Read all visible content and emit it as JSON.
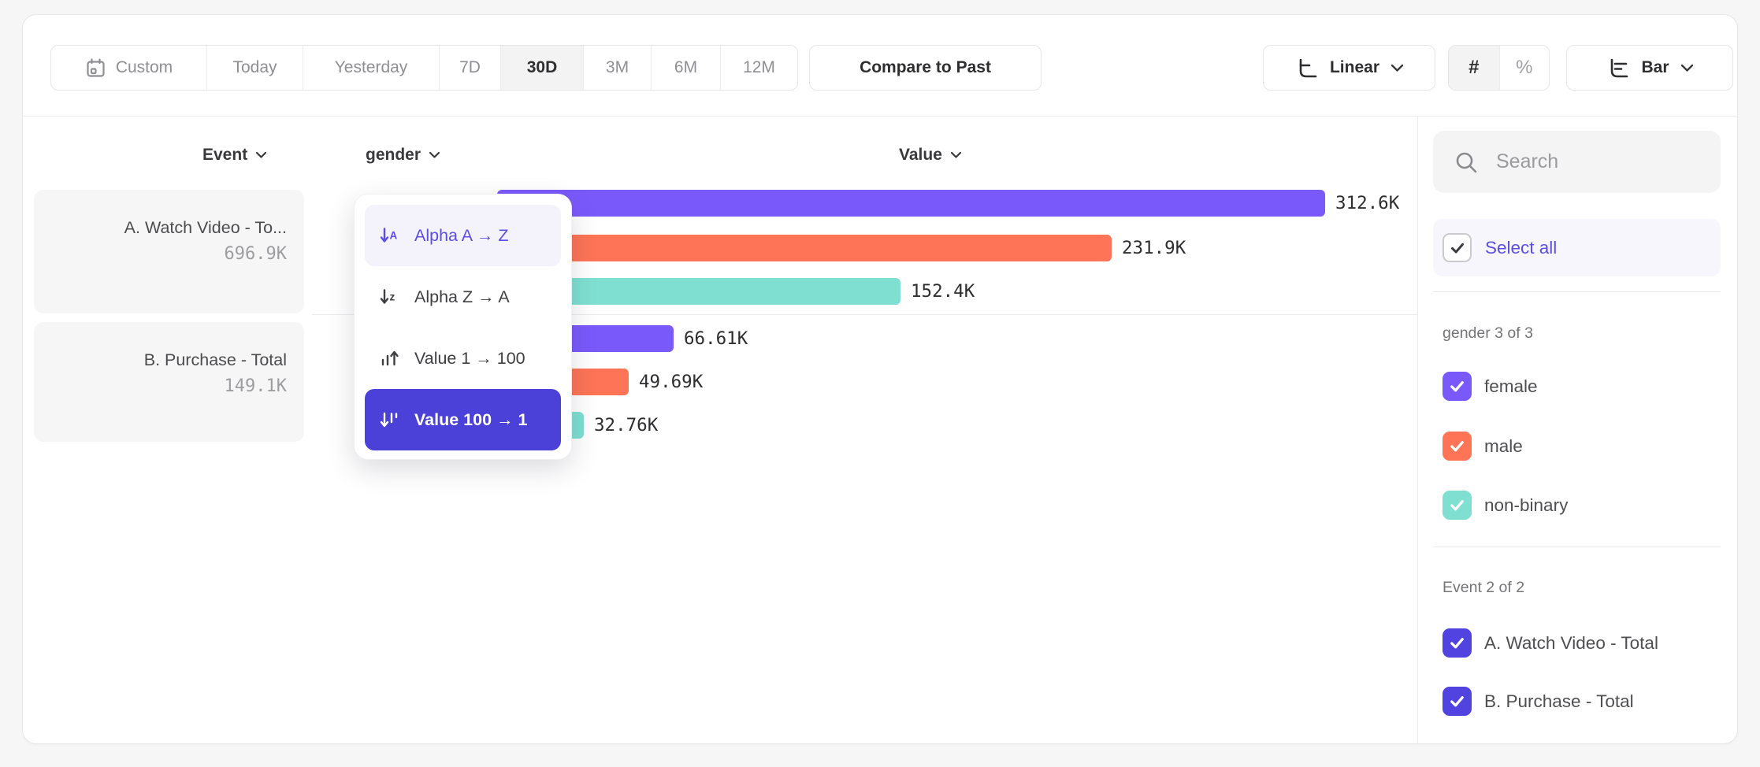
{
  "toolbar": {
    "date_ranges": [
      {
        "label": "Custom",
        "icon": "calendar-icon"
      },
      {
        "label": "Today"
      },
      {
        "label": "Yesterday"
      },
      {
        "label": "7D"
      },
      {
        "label": "30D",
        "selected": true
      },
      {
        "label": "3M"
      },
      {
        "label": "6M"
      },
      {
        "label": "12M"
      }
    ],
    "selected_range": "30D",
    "compare_button": "Compare to Past",
    "scale_selector": {
      "label": "Linear",
      "icon": "linear-scale-icon"
    },
    "value_format": {
      "options": [
        "#",
        "%"
      ],
      "selected": "#"
    },
    "chart_type_selector": {
      "label": "Bar",
      "icon": "bar-chart-icon"
    }
  },
  "columns": {
    "event": "Event",
    "breakdown": "gender",
    "value": "Value"
  },
  "events": [
    {
      "name": "A. Watch Video - To...",
      "total": "696.9K"
    },
    {
      "name": "B. Purchase - Total",
      "total": "149.1K"
    }
  ],
  "sort_menu": {
    "items": [
      {
        "label": "Alpha A → Z",
        "icon": "sort-alpha-asc-icon",
        "state": "hover"
      },
      {
        "label": "Alpha Z → A",
        "icon": "sort-alpha-desc-icon",
        "state": "normal"
      },
      {
        "label": "Value 1 → 100",
        "icon": "sort-value-asc-icon",
        "state": "normal"
      },
      {
        "label": "Value 100 → 1",
        "icon": "sort-value-desc-icon",
        "state": "selected"
      }
    ]
  },
  "chart_data": {
    "type": "bar",
    "orientation": "horizontal",
    "sort": "Value 100 → 1",
    "xmax": 312600,
    "groups": [
      {
        "event": "A. Watch Video - Total",
        "total_label": "696.9K",
        "bars": [
          {
            "segment": "female",
            "value": 312600,
            "label": "312.6K",
            "color": "#7a59fb"
          },
          {
            "segment": "male",
            "value": 231900,
            "label": "231.9K",
            "color": "#fd7456"
          },
          {
            "segment": "non-binary",
            "value": 152400,
            "label": "152.4K",
            "color": "#7fe0d2"
          }
        ]
      },
      {
        "event": "B. Purchase - Total",
        "total_label": "149.1K",
        "bars": [
          {
            "segment": "female",
            "value": 66610,
            "label": "66.61K",
            "color": "#7a59fb"
          },
          {
            "segment": "male",
            "value": 49690,
            "label": "49.69K",
            "color": "#fd7456"
          },
          {
            "segment": "non-binary",
            "value": 32760,
            "label": "32.76K",
            "color": "#7fe0d2"
          }
        ]
      }
    ]
  },
  "sidebar": {
    "search_placeholder": "Search",
    "select_all_label": "Select all",
    "sections": [
      {
        "title": "gender 3 of 3",
        "items": [
          {
            "label": "female",
            "checked": true,
            "color": "#7a59fb"
          },
          {
            "label": "male",
            "checked": true,
            "color": "#fd7456"
          },
          {
            "label": "non-binary",
            "checked": true,
            "color": "#7fe0d2"
          }
        ]
      },
      {
        "title": "Event 2 of 2",
        "items": [
          {
            "label": "A. Watch Video - Total",
            "checked": true,
            "color": "#5143e0"
          },
          {
            "label": "B. Purchase - Total",
            "checked": true,
            "color": "#5143e0"
          }
        ]
      }
    ]
  }
}
